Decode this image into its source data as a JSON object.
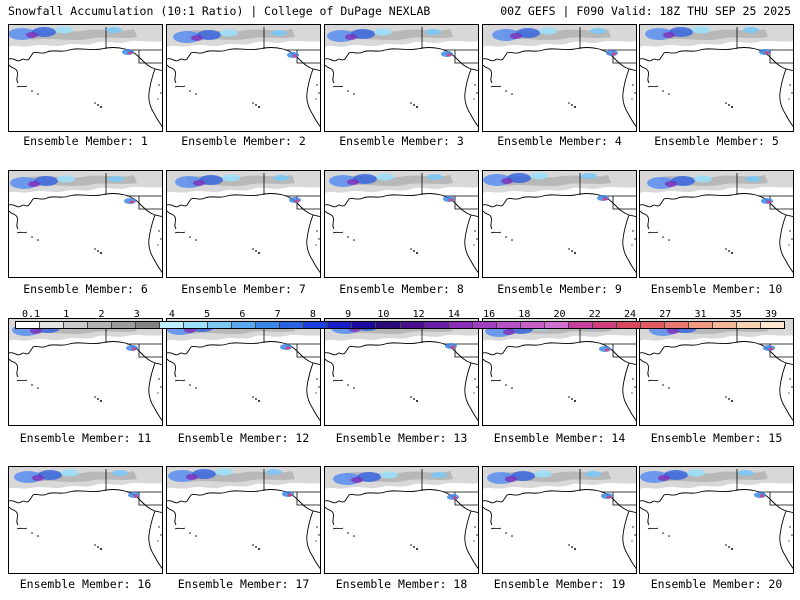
{
  "header": {
    "left": "Snowfall Accumulation (10:1 Ratio) | College of DuPage NEXLAB",
    "right": "00Z GEFS | F090 Valid: 18Z THU SEP 25 2025"
  },
  "panels": [
    {
      "label": "Ensemble Member: 1"
    },
    {
      "label": "Ensemble Member: 2"
    },
    {
      "label": "Ensemble Member: 3"
    },
    {
      "label": "Ensemble Member: 4"
    },
    {
      "label": "Ensemble Member: 5"
    },
    {
      "label": "Ensemble Member: 6"
    },
    {
      "label": "Ensemble Member: 7"
    },
    {
      "label": "Ensemble Member: 8"
    },
    {
      "label": "Ensemble Member: 9"
    },
    {
      "label": "Ensemble Member: 10"
    },
    {
      "label": "Ensemble Member: 11"
    },
    {
      "label": "Ensemble Member: 12"
    },
    {
      "label": "Ensemble Member: 13"
    },
    {
      "label": "Ensemble Member: 14"
    },
    {
      "label": "Ensemble Member: 15"
    },
    {
      "label": "Ensemble Member: 16"
    },
    {
      "label": "Ensemble Member: 17"
    },
    {
      "label": "Ensemble Member: 18"
    },
    {
      "label": "Ensemble Member: 19"
    },
    {
      "label": "Ensemble Member: 20"
    }
  ],
  "colorbar": {
    "labels": [
      "0.1",
      "1",
      "2",
      "3",
      "4",
      "5",
      "6",
      "7",
      "8",
      "9",
      "10",
      "12",
      "14",
      "16",
      "18",
      "20",
      "22",
      "24",
      "27",
      "31",
      "35",
      "39"
    ],
    "colors": [
      "#ffffff",
      "#e4e4e4",
      "#cccccc",
      "#b4b4b4",
      "#9c9c9c",
      "#848484",
      "#bff0ff",
      "#9ce0fa",
      "#7cc8f5",
      "#5aa8ef",
      "#3c88e8",
      "#2a64e4",
      "#1e40dc",
      "#1a20c8",
      "#1a0aa0",
      "#2a0a78",
      "#4a1090",
      "#6a20a8",
      "#8a30b8",
      "#a040c0",
      "#b850c8",
      "#c860c8",
      "#d070d0",
      "#c8409c",
      "#d0407c",
      "#d84860",
      "#e05c60",
      "#e87870",
      "#f09880",
      "#f4b898",
      "#f8d4b4",
      "#fce8d0"
    ]
  }
}
